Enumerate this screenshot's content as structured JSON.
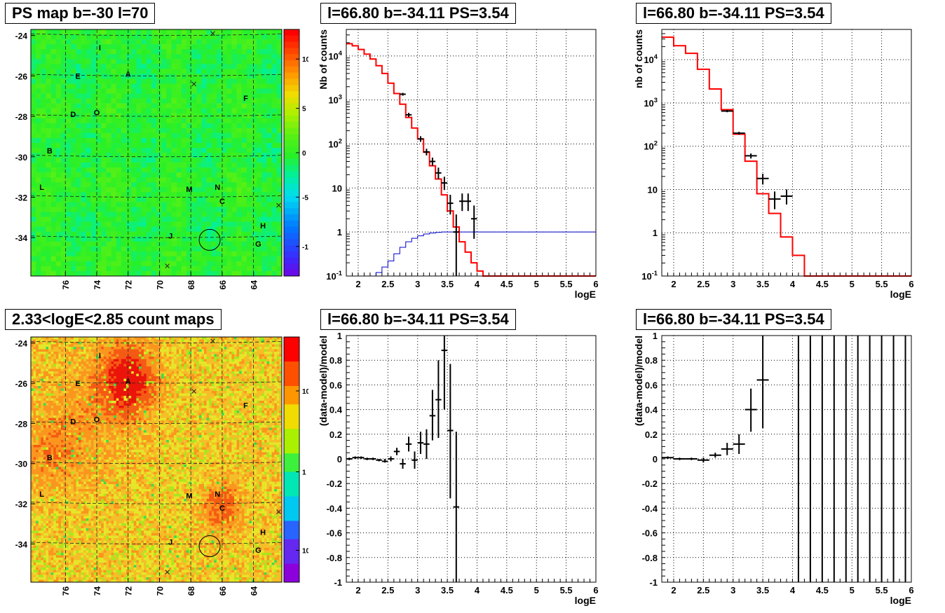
{
  "panels": {
    "ps_map": {
      "title": "PS map b=-30 l=70"
    },
    "count_map": {
      "title": "2.33<logE<2.85 count maps"
    },
    "spec_a": {
      "title": "l=66.80 b=-34.11 PS=3.54"
    },
    "spec_b": {
      "title": "l=66.80 b=-34.11 PS=3.54"
    },
    "res_a": {
      "title": "l=66.80 b=-34.11 PS=3.54"
    },
    "res_b": {
      "title": "l=66.80 b=-34.11 PS=3.54"
    }
  },
  "colors": {
    "model": "#ff0000",
    "background_model": "#0000cc",
    "data": "#000000"
  },
  "chart_data": [
    {
      "id": "ps_map",
      "type": "heatmap",
      "title": "PS map b=-30 l=70",
      "x_ticks": [
        "76",
        "74",
        "72",
        "70",
        "68",
        "66",
        "64"
      ],
      "y_ticks": [
        "-24",
        "-26",
        "-28",
        "-30",
        "-32",
        "-34"
      ],
      "colorbar_ticks": [
        "10",
        "5",
        "0",
        "-5",
        "-10"
      ],
      "colorbar_range": [
        -12,
        12
      ],
      "sources": [
        "I",
        "E",
        "A",
        "F",
        "D",
        "O",
        "B",
        "L",
        "M",
        "N",
        "C",
        "J",
        "H",
        "G"
      ],
      "candidate": {
        "l": 66.8,
        "b": -34.11
      }
    },
    {
      "id": "count_map",
      "type": "heatmap",
      "title": "2.33<logE<2.85 count maps",
      "x_ticks": [
        "76",
        "74",
        "72",
        "70",
        "68",
        "66",
        "64"
      ],
      "y_ticks": [
        "-24",
        "-26",
        "-28",
        "-30",
        "-32",
        "-34"
      ],
      "colorbar_ticks": [
        "10",
        "1",
        "10^-1"
      ],
      "colorbar_scale": "log",
      "sources": [
        "I",
        "E",
        "A",
        "F",
        "D",
        "O",
        "B",
        "L",
        "M",
        "N",
        "C",
        "J",
        "H",
        "G"
      ]
    },
    {
      "id": "spec_a",
      "type": "line",
      "title": "l=66.80 b=-34.11 PS=3.54",
      "xlabel": "logE",
      "ylabel": "Nb of counts",
      "xlim": [
        1.8,
        6
      ],
      "ylim": [
        0.1,
        40000
      ],
      "yscale": "log",
      "grid": true,
      "x_ticks": [
        "2",
        "2.5",
        "3",
        "3.5",
        "4",
        "4.5",
        "5",
        "5.5",
        "6"
      ],
      "y_ticks": [
        "10^-1",
        "1",
        "10",
        "10^2",
        "10^3",
        "10^4"
      ],
      "model_edges": [
        1.8,
        1.9,
        2.0,
        2.1,
        2.2,
        2.3,
        2.4,
        2.5,
        2.6,
        2.7,
        2.8,
        2.9,
        3.0,
        3.1,
        3.2,
        3.3,
        3.4,
        3.5,
        3.6,
        3.7,
        3.8,
        3.9,
        4.0,
        4.1,
        4.2,
        6.0
      ],
      "model_values": [
        19000,
        17000,
        14000,
        11000,
        8500,
        6000,
        4000,
        2400,
        1400,
        800,
        400,
        230,
        130,
        65,
        32,
        16,
        7,
        3,
        1.3,
        0.6,
        0.35,
        0.2,
        0.13,
        0.1,
        0.1
      ],
      "bkg_edges": [
        2.2,
        2.3,
        2.4,
        2.5,
        2.6,
        2.7,
        2.8,
        2.9,
        3.0,
        3.1,
        3.2,
        3.3,
        3.4,
        3.5,
        3.6,
        3.7,
        3.8,
        6.0
      ],
      "bkg_values": [
        0.1,
        0.12,
        0.16,
        0.22,
        0.32,
        0.45,
        0.6,
        0.72,
        0.82,
        0.9,
        0.95,
        0.98,
        1.0,
        1.0,
        1.0,
        1.0,
        1.0
      ],
      "points": [
        {
          "x": 2.75,
          "y": 1350,
          "xerr": 0.05,
          "ylo": 1250,
          "yhi": 1450
        },
        {
          "x": 2.85,
          "y": 460,
          "xerr": 0.05,
          "ylo": 410,
          "yhi": 510
        },
        {
          "x": 3.05,
          "y": 130,
          "xerr": 0.05,
          "ylo": 112,
          "yhi": 150
        },
        {
          "x": 3.15,
          "y": 66,
          "xerr": 0.05,
          "ylo": 55,
          "yhi": 78
        },
        {
          "x": 3.25,
          "y": 40,
          "xerr": 0.05,
          "ylo": 32,
          "yhi": 49
        },
        {
          "x": 3.35,
          "y": 22,
          "xerr": 0.05,
          "ylo": 16,
          "yhi": 29
        },
        {
          "x": 3.45,
          "y": 13,
          "xerr": 0.05,
          "ylo": 9,
          "yhi": 18
        },
        {
          "x": 3.55,
          "y": 4.5,
          "xerr": 0.05,
          "ylo": 2.5,
          "yhi": 7
        },
        {
          "x": 3.65,
          "y": 1,
          "xerr": 0.05,
          "ylo": 0.1,
          "yhi": 2.5
        },
        {
          "x": 3.75,
          "y": 5,
          "xerr": 0.05,
          "ylo": 3,
          "yhi": 7.5
        },
        {
          "x": 3.85,
          "y": 5,
          "xerr": 0.05,
          "ylo": 3,
          "yhi": 7.5
        },
        {
          "x": 3.95,
          "y": 2,
          "xerr": 0.05,
          "ylo": 0.7,
          "yhi": 4
        }
      ]
    },
    {
      "id": "spec_b",
      "type": "line",
      "title": "l=66.80 b=-34.11 PS=3.54",
      "xlabel": "logE",
      "ylabel": "nb of counts",
      "xlim": [
        1.8,
        6
      ],
      "ylim": [
        0.1,
        50000
      ],
      "yscale": "log",
      "grid": true,
      "x_ticks": [
        "2",
        "2.5",
        "3",
        "3.5",
        "4",
        "4.5",
        "5",
        "5.5",
        "6"
      ],
      "y_ticks": [
        "10^-1",
        "1",
        "10",
        "10^2",
        "10^3",
        "10^4"
      ],
      "model_edges": [
        1.8,
        2.0,
        2.2,
        2.4,
        2.6,
        2.8,
        3.0,
        3.2,
        3.4,
        3.6,
        3.8,
        4.0,
        4.2,
        6.0
      ],
      "model_values": [
        33000,
        21000,
        14000,
        6000,
        2100,
        700,
        190,
        45,
        8,
        2.8,
        0.8,
        0.3,
        0.1
      ],
      "points": [
        {
          "x": 2.9,
          "y": 650,
          "xerr": 0.1,
          "ylo": 610,
          "yhi": 690
        },
        {
          "x": 3.1,
          "y": 200,
          "xerr": 0.1,
          "ylo": 185,
          "yhi": 215
        },
        {
          "x": 3.3,
          "y": 60,
          "xerr": 0.1,
          "ylo": 52,
          "yhi": 68
        },
        {
          "x": 3.5,
          "y": 18,
          "xerr": 0.1,
          "ylo": 13,
          "yhi": 23
        },
        {
          "x": 3.7,
          "y": 6,
          "xerr": 0.1,
          "ylo": 3.5,
          "yhi": 9
        },
        {
          "x": 3.9,
          "y": 7,
          "xerr": 0.1,
          "ylo": 4.5,
          "yhi": 10
        }
      ]
    },
    {
      "id": "res_a",
      "type": "scatter",
      "title": "l=66.80 b=-34.11 PS=3.54",
      "xlabel": "logE",
      "ylabel": "(data-model)/model",
      "xlim": [
        1.8,
        6
      ],
      "ylim": [
        -1,
        1
      ],
      "grid": true,
      "x_ticks": [
        "2",
        "2.5",
        "3",
        "3.5",
        "4",
        "4.5",
        "5",
        "5.5",
        "6"
      ],
      "y_ticks": [
        "-1",
        "-0.8",
        "-0.6",
        "-0.4",
        "-0.2",
        "0",
        "0.2",
        "0.4",
        "0.6",
        "0.8",
        "1"
      ],
      "points": [
        {
          "x": 1.85,
          "y": 0.0,
          "xerr": 0.05,
          "ylo": -0.01,
          "yhi": 0.01
        },
        {
          "x": 1.95,
          "y": 0.01,
          "xerr": 0.05,
          "ylo": 0.0,
          "yhi": 0.02
        },
        {
          "x": 2.05,
          "y": 0.01,
          "xerr": 0.05,
          "ylo": 0.0,
          "yhi": 0.02
        },
        {
          "x": 2.15,
          "y": 0.0,
          "xerr": 0.05,
          "ylo": -0.01,
          "yhi": 0.01
        },
        {
          "x": 2.25,
          "y": 0.0,
          "xerr": 0.05,
          "ylo": -0.01,
          "yhi": 0.01
        },
        {
          "x": 2.35,
          "y": -0.01,
          "xerr": 0.05,
          "ylo": -0.02,
          "yhi": 0.0
        },
        {
          "x": 2.45,
          "y": -0.02,
          "xerr": 0.05,
          "ylo": -0.03,
          "yhi": 0.0
        },
        {
          "x": 2.55,
          "y": 0.0,
          "xerr": 0.05,
          "ylo": -0.02,
          "yhi": 0.02
        },
        {
          "x": 2.65,
          "y": 0.06,
          "xerr": 0.05,
          "ylo": 0.03,
          "yhi": 0.09
        },
        {
          "x": 2.75,
          "y": -0.04,
          "xerr": 0.05,
          "ylo": -0.08,
          "yhi": 0.0
        },
        {
          "x": 2.85,
          "y": 0.12,
          "xerr": 0.05,
          "ylo": 0.06,
          "yhi": 0.18
        },
        {
          "x": 2.95,
          "y": -0.01,
          "xerr": 0.05,
          "ylo": -0.08,
          "yhi": 0.06
        },
        {
          "x": 3.05,
          "y": 0.13,
          "xerr": 0.05,
          "ylo": 0.04,
          "yhi": 0.22
        },
        {
          "x": 3.15,
          "y": 0.12,
          "xerr": 0.05,
          "ylo": 0.0,
          "yhi": 0.24
        },
        {
          "x": 3.25,
          "y": 0.35,
          "xerr": 0.05,
          "ylo": 0.15,
          "yhi": 0.56
        },
        {
          "x": 3.35,
          "y": 0.48,
          "xerr": 0.05,
          "ylo": 0.17,
          "yhi": 0.8
        },
        {
          "x": 3.45,
          "y": 0.88,
          "xerr": 0.05,
          "ylo": 0.4,
          "yhi": 1.0
        },
        {
          "x": 3.55,
          "y": 0.23,
          "xerr": 0.05,
          "ylo": -0.32,
          "yhi": 0.77
        },
        {
          "x": 3.65,
          "y": -0.39,
          "xerr": 0.05,
          "ylo": -1.0,
          "yhi": 0.22
        }
      ]
    },
    {
      "id": "res_b",
      "type": "scatter",
      "title": "l=66.80 b=-34.11 PS=3.54",
      "xlabel": "logE",
      "ylabel": "(data-model)/model",
      "xlim": [
        1.8,
        6
      ],
      "ylim": [
        -1,
        1
      ],
      "grid": true,
      "x_ticks": [
        "2",
        "2.5",
        "3",
        "3.5",
        "4",
        "4.5",
        "5",
        "5.5",
        "6"
      ],
      "y_ticks": [
        "-1",
        "-0.8",
        "-0.6",
        "-0.4",
        "-0.2",
        "0",
        "0.2",
        "0.4",
        "0.6",
        "0.8",
        "1"
      ],
      "points": [
        {
          "x": 1.9,
          "y": 0.01,
          "xerr": 0.1,
          "ylo": 0.0,
          "yhi": 0.02
        },
        {
          "x": 2.1,
          "y": 0.0,
          "xerr": 0.1,
          "ylo": -0.01,
          "yhi": 0.01
        },
        {
          "x": 2.3,
          "y": 0.0,
          "xerr": 0.1,
          "ylo": -0.01,
          "yhi": 0.01
        },
        {
          "x": 2.5,
          "y": -0.01,
          "xerr": 0.1,
          "ylo": -0.03,
          "yhi": 0.01
        },
        {
          "x": 2.7,
          "y": 0.03,
          "xerr": 0.1,
          "ylo": 0.01,
          "yhi": 0.05
        },
        {
          "x": 2.9,
          "y": 0.08,
          "xerr": 0.1,
          "ylo": 0.03,
          "yhi": 0.13
        },
        {
          "x": 3.1,
          "y": 0.12,
          "xerr": 0.1,
          "ylo": 0.04,
          "yhi": 0.2
        },
        {
          "x": 3.3,
          "y": 0.4,
          "xerr": 0.1,
          "ylo": 0.22,
          "yhi": 0.57
        },
        {
          "x": 3.5,
          "y": 0.64,
          "xerr": 0.1,
          "ylo": 0.25,
          "yhi": 1.0
        }
      ],
      "full_bars_x": [
        4.1,
        4.3,
        4.5,
        4.7,
        4.9,
        5.1,
        5.3,
        5.5,
        5.7,
        5.9
      ]
    }
  ]
}
